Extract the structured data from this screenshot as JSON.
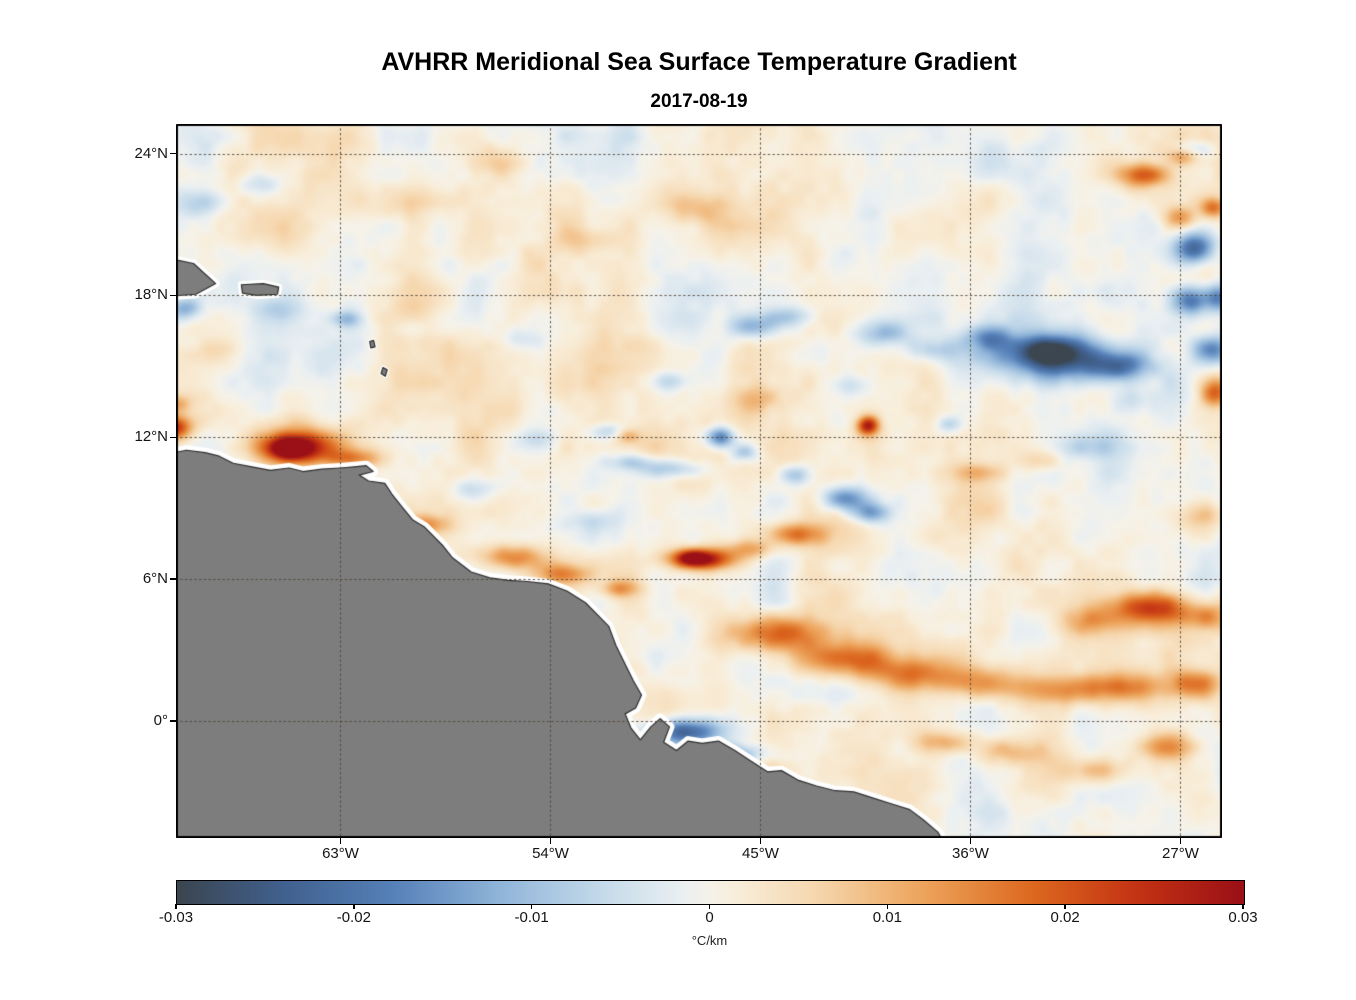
{
  "colors": {
    "land": "#7d7d7d",
    "coastline": "#2e2e2e",
    "coast_halo": "#ffffff",
    "grid": "rgba(79,68,55,0.9)",
    "axis": "#000000",
    "background": "#ffffff"
  },
  "chart_data": {
    "type": "heatmap",
    "title": "AVHRR Meridional Sea Surface Temperature Gradient",
    "subtitle": "2017-08-19",
    "axes": {
      "lat_ticks": [
        {
          "label": "24°N",
          "value": 24
        },
        {
          "label": "18°N",
          "value": 18
        },
        {
          "label": "12°N",
          "value": 12
        },
        {
          "label": "6°N",
          "value": 6
        },
        {
          "label": "0°",
          "value": 0
        }
      ],
      "lon_ticks": [
        {
          "label": "63°W",
          "value": -63
        },
        {
          "label": "54°W",
          "value": -54
        },
        {
          "label": "45°W",
          "value": -45
        },
        {
          "label": "36°W",
          "value": -36
        },
        {
          "label": "27°W",
          "value": -27
        }
      ],
      "grid": "dotted"
    },
    "extent": {
      "lon_min": -70.05,
      "lon_max": -25.22,
      "lat_min": -4.95,
      "lat_max": 25.25
    },
    "value_range": [
      -0.03,
      0.03
    ],
    "colorbar": {
      "min": -0.03,
      "max": 0.03,
      "unit": "°C/km",
      "ticks": [
        {
          "label": "-0.03",
          "value": -0.03
        },
        {
          "label": "-0.02",
          "value": -0.02
        },
        {
          "label": "-0.01",
          "value": -0.01
        },
        {
          "label": "0",
          "value": 0
        },
        {
          "label": "0.01",
          "value": 0.01
        },
        {
          "label": "0.02",
          "value": 0.02
        },
        {
          "label": "0.03",
          "value": 0.03
        }
      ]
    },
    "colormap_stops": [
      {
        "v": -0.03,
        "c": "#3b4650"
      },
      {
        "v": -0.024,
        "c": "#41618f"
      },
      {
        "v": -0.018,
        "c": "#5580b8"
      },
      {
        "v": -0.012,
        "c": "#8fb4d9"
      },
      {
        "v": -0.006,
        "c": "#c6dbeb"
      },
      {
        "v": -0.0015,
        "c": "#ebf0f2"
      },
      {
        "v": 0.0,
        "c": "#f6f2e9"
      },
      {
        "v": 0.0015,
        "c": "#f8eeda"
      },
      {
        "v": 0.006,
        "c": "#f6d7ae"
      },
      {
        "v": 0.012,
        "c": "#eda45c"
      },
      {
        "v": 0.018,
        "c": "#dd6a20"
      },
      {
        "v": 0.024,
        "c": "#c43314"
      },
      {
        "v": 0.03,
        "c": "#9a1016"
      }
    ],
    "noise": {
      "bias": 0.0008,
      "octaves": [
        {
          "cell": 3.0,
          "amp": 0.0038,
          "seed": 11
        },
        {
          "cell": 1.3,
          "amp": 0.0026,
          "seed": 23
        },
        {
          "cell": 0.55,
          "amp": 0.0011,
          "seed": 37
        }
      ]
    },
    "features_gaussian": [
      [
        -64.9,
        11.6,
        1.2,
        0.5,
        0.03
      ],
      [
        -65.2,
        11.5,
        0.5,
        0.28,
        0.02
      ],
      [
        -70.2,
        12.4,
        0.55,
        0.35,
        0.026
      ],
      [
        -70.0,
        13.4,
        0.4,
        0.3,
        0.012
      ],
      [
        -62.4,
        11.1,
        0.9,
        0.28,
        0.012
      ],
      [
        -59.4,
        8.3,
        0.7,
        0.3,
        0.012
      ],
      [
        -55.6,
        6.9,
        1.0,
        0.38,
        0.016
      ],
      [
        -53.6,
        6.2,
        0.8,
        0.3,
        0.013
      ],
      [
        -51.0,
        5.6,
        0.6,
        0.25,
        0.01
      ],
      [
        -47.6,
        6.85,
        1.0,
        0.32,
        0.03
      ],
      [
        -47.9,
        6.9,
        0.4,
        0.2,
        0.014
      ],
      [
        -45.4,
        7.3,
        0.8,
        0.3,
        0.011
      ],
      [
        -43.6,
        7.9,
        0.9,
        0.33,
        0.015
      ],
      [
        -40.4,
        12.5,
        0.33,
        0.28,
        0.026
      ],
      [
        -44.2,
        3.7,
        1.6,
        0.6,
        0.019
      ],
      [
        -41.5,
        2.6,
        1.5,
        0.55,
        0.017
      ],
      [
        -38.4,
        2.0,
        1.3,
        0.5,
        0.013
      ],
      [
        -35.5,
        1.6,
        1.2,
        0.45,
        0.013
      ],
      [
        -32.5,
        1.3,
        1.3,
        0.45,
        0.013
      ],
      [
        -29.5,
        1.4,
        1.2,
        0.45,
        0.015
      ],
      [
        -26.5,
        1.6,
        0.8,
        0.4,
        0.013
      ],
      [
        -28.2,
        4.8,
        1.2,
        0.5,
        0.024
      ],
      [
        -30.8,
        4.2,
        1.0,
        0.45,
        0.01
      ],
      [
        -25.8,
        4.4,
        0.7,
        0.4,
        0.012
      ],
      [
        -28.6,
        23.1,
        0.7,
        0.35,
        0.02
      ],
      [
        -26.8,
        23.9,
        0.5,
        0.25,
        0.014
      ],
      [
        -27.0,
        21.3,
        0.5,
        0.35,
        0.014
      ],
      [
        -25.6,
        21.7,
        0.4,
        0.3,
        0.016
      ],
      [
        -25.5,
        13.9,
        0.45,
        0.45,
        0.018
      ],
      [
        -35.7,
        10.5,
        0.9,
        0.3,
        0.009
      ],
      [
        -33.1,
        11.0,
        0.7,
        0.3,
        0.007
      ],
      [
        -50.7,
        12.05,
        0.4,
        0.22,
        0.009
      ],
      [
        -47.6,
        21.6,
        1.2,
        0.5,
        0.006
      ],
      [
        -56.6,
        23.6,
        1.0,
        0.4,
        0.006
      ],
      [
        -45.1,
        13.6,
        0.8,
        0.4,
        0.006
      ],
      [
        -68.4,
        15.6,
        0.7,
        0.4,
        0.006
      ],
      [
        -26.1,
        8.6,
        0.8,
        0.5,
        0.009
      ],
      [
        -44.9,
        -2.1,
        0.8,
        0.3,
        0.011
      ],
      [
        -37.1,
        -0.9,
        0.9,
        0.35,
        0.011
      ],
      [
        -34.1,
        -1.3,
        1.0,
        0.4,
        0.009
      ],
      [
        -30.6,
        -2.1,
        1.0,
        0.4,
        0.011
      ],
      [
        -27.6,
        -1.1,
        0.9,
        0.4,
        0.012
      ],
      [
        -60.3,
        21.9,
        0.9,
        0.45,
        0.005
      ],
      [
        -52.6,
        20.3,
        0.9,
        0.45,
        0.005
      ],
      [
        -32.2,
        15.4,
        1.7,
        0.65,
        -0.03
      ],
      [
        -32.8,
        15.7,
        0.8,
        0.35,
        -0.013
      ],
      [
        -35.2,
        16.2,
        0.7,
        0.35,
        -0.012
      ],
      [
        -29.6,
        15.0,
        0.9,
        0.45,
        -0.02
      ],
      [
        -26.6,
        17.8,
        0.6,
        0.45,
        -0.022
      ],
      [
        -25.4,
        17.9,
        0.4,
        0.4,
        -0.016
      ],
      [
        -26.4,
        20.0,
        0.6,
        0.45,
        -0.022
      ],
      [
        -25.7,
        15.7,
        0.5,
        0.4,
        -0.016
      ],
      [
        -26.5,
        24.1,
        0.6,
        0.3,
        -0.012
      ],
      [
        -46.7,
        12.0,
        0.42,
        0.3,
        -0.022
      ],
      [
        -41.4,
        9.4,
        0.7,
        0.35,
        -0.02
      ],
      [
        -40.3,
        8.8,
        0.55,
        0.3,
        -0.015
      ],
      [
        -43.5,
        10.4,
        0.5,
        0.3,
        -0.011
      ],
      [
        -45.7,
        11.35,
        0.4,
        0.25,
        -0.01
      ],
      [
        -48.8,
        10.65,
        1.0,
        0.28,
        -0.011
      ],
      [
        -50.6,
        10.95,
        0.7,
        0.24,
        -0.009
      ],
      [
        -45.3,
        16.7,
        0.8,
        0.35,
        -0.011
      ],
      [
        -43.7,
        17.1,
        0.7,
        0.3,
        -0.009
      ],
      [
        -39.7,
        16.4,
        0.9,
        0.4,
        -0.012
      ],
      [
        -37.7,
        15.7,
        0.7,
        0.35,
        -0.009
      ],
      [
        -48.95,
        14.35,
        0.5,
        0.3,
        -0.007
      ],
      [
        -69.7,
        17.45,
        0.5,
        0.3,
        -0.012
      ],
      [
        -69.0,
        21.9,
        0.8,
        0.4,
        -0.008
      ],
      [
        -66.4,
        22.7,
        0.7,
        0.35,
        -0.007
      ],
      [
        -62.7,
        17.0,
        0.5,
        0.25,
        -0.01
      ],
      [
        -59.9,
        16.6,
        0.5,
        0.3,
        -0.006
      ],
      [
        -48.3,
        -0.45,
        1.2,
        0.38,
        -0.024
      ],
      [
        -46.4,
        -1.45,
        0.9,
        0.33,
        -0.02
      ],
      [
        -44.9,
        -2.35,
        0.6,
        0.26,
        -0.012
      ],
      [
        -51.5,
        12.25,
        0.5,
        0.25,
        -0.008
      ],
      [
        -57.4,
        9.8,
        0.6,
        0.3,
        -0.007
      ],
      [
        -36.95,
        12.55,
        0.4,
        0.25,
        -0.009
      ],
      [
        -31.1,
        11.6,
        0.8,
        0.4,
        -0.007
      ],
      [
        -29.1,
        13.6,
        0.7,
        0.4,
        -0.006
      ],
      [
        -65.6,
        17.35,
        0.8,
        0.4,
        -0.006
      ],
      [
        -55.3,
        16.2,
        0.7,
        0.35,
        -0.005
      ],
      [
        -41.1,
        14.2,
        0.6,
        0.3,
        -0.006
      ],
      [
        -52.2,
        8.4,
        0.7,
        0.3,
        -0.006
      ],
      [
        -54.6,
        11.9,
        0.6,
        0.3,
        -0.005
      ]
    ],
    "land": {
      "mainland": {
        "name": "south-america",
        "halo": 10,
        "points": [
          [
            -70.4,
            -5.2
          ],
          [
            -70.4,
            11.3
          ],
          [
            -69.6,
            11.45
          ],
          [
            -68.8,
            11.35
          ],
          [
            -68.2,
            11.2
          ],
          [
            -67.6,
            10.9
          ],
          [
            -66.8,
            10.75
          ],
          [
            -66.0,
            10.6
          ],
          [
            -65.2,
            10.7
          ],
          [
            -64.6,
            10.55
          ],
          [
            -63.8,
            10.65
          ],
          [
            -63.0,
            10.7
          ],
          [
            -62.4,
            10.75
          ],
          [
            -61.9,
            10.8
          ],
          [
            -61.6,
            10.55
          ],
          [
            -62.2,
            10.4
          ],
          [
            -61.8,
            10.15
          ],
          [
            -61.1,
            10.05
          ],
          [
            -60.8,
            9.6
          ],
          [
            -60.4,
            9.1
          ],
          [
            -59.9,
            8.5
          ],
          [
            -59.4,
            8.2
          ],
          [
            -58.6,
            7.4
          ],
          [
            -58.2,
            6.9
          ],
          [
            -57.4,
            6.3
          ],
          [
            -56.6,
            6.05
          ],
          [
            -55.8,
            5.95
          ],
          [
            -55.0,
            5.9
          ],
          [
            -54.1,
            5.8
          ],
          [
            -53.3,
            5.5
          ],
          [
            -52.5,
            5.0
          ],
          [
            -51.9,
            4.4
          ],
          [
            -51.5,
            4.0
          ],
          [
            -51.2,
            3.2
          ],
          [
            -50.8,
            2.4
          ],
          [
            -50.45,
            1.7
          ],
          [
            -50.1,
            1.1
          ],
          [
            -50.35,
            0.55
          ],
          [
            -50.8,
            0.3
          ],
          [
            -50.55,
            -0.3
          ],
          [
            -50.15,
            -0.8
          ],
          [
            -49.7,
            -0.25
          ],
          [
            -49.3,
            0.1
          ],
          [
            -48.9,
            -0.25
          ],
          [
            -49.15,
            -0.9
          ],
          [
            -48.6,
            -1.25
          ],
          [
            -48.1,
            -0.85
          ],
          [
            -47.5,
            -0.95
          ],
          [
            -46.8,
            -0.85
          ],
          [
            -46.1,
            -1.25
          ],
          [
            -45.4,
            -1.7
          ],
          [
            -44.7,
            -2.15
          ],
          [
            -44.1,
            -2.1
          ],
          [
            -43.4,
            -2.5
          ],
          [
            -42.6,
            -2.75
          ],
          [
            -41.8,
            -2.95
          ],
          [
            -41.0,
            -3.0
          ],
          [
            -40.2,
            -3.25
          ],
          [
            -39.4,
            -3.5
          ],
          [
            -38.6,
            -3.75
          ],
          [
            -38.0,
            -4.2
          ],
          [
            -37.4,
            -4.7
          ],
          [
            -37.1,
            -5.2
          ]
        ]
      },
      "islands": [
        {
          "name": "hispaniola",
          "halo": 8,
          "points": [
            [
              -70.5,
              19.6
            ],
            [
              -69.3,
              19.35
            ],
            [
              -68.35,
              18.5
            ],
            [
              -69.2,
              18.05
            ],
            [
              -70.5,
              17.95
            ]
          ]
        },
        {
          "name": "puerto-rico",
          "halo": 7,
          "points": [
            [
              -67.25,
              18.45
            ],
            [
              -66.3,
              18.5
            ],
            [
              -65.65,
              18.35
            ],
            [
              -65.7,
              18.05
            ],
            [
              -66.6,
              18.0
            ],
            [
              -67.2,
              18.1
            ]
          ]
        },
        {
          "name": "island-speck-north",
          "halo": 4,
          "points": [
            [
              -61.75,
              16.05
            ],
            [
              -61.58,
              16.1
            ],
            [
              -61.52,
              15.82
            ],
            [
              -61.7,
              15.78
            ]
          ]
        },
        {
          "name": "island-speck-south",
          "halo": 4,
          "points": [
            [
              -61.18,
              14.95
            ],
            [
              -61.0,
              14.85
            ],
            [
              -61.08,
              14.58
            ],
            [
              -61.26,
              14.7
            ]
          ]
        }
      ]
    }
  }
}
